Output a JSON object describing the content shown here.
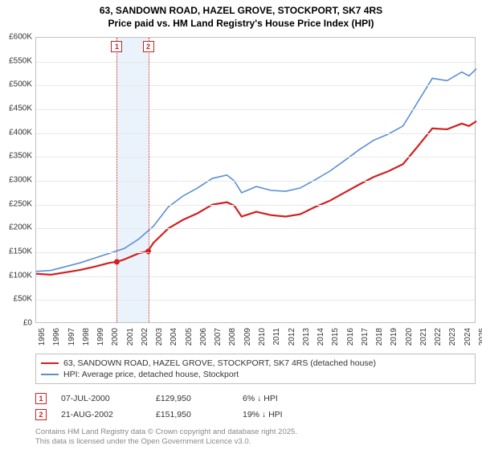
{
  "title": {
    "line1": "63, SANDOWN ROAD, HAZEL GROVE, STOCKPORT, SK7 4RS",
    "line2": "Price paid vs. HM Land Registry's House Price Index (HPI)"
  },
  "chart": {
    "type": "line",
    "background_color": "#ffffff",
    "grid_color": "#e8e8e8",
    "border_color": "#c0c0c0",
    "x_years": [
      1995,
      1996,
      1997,
      1998,
      1999,
      2000,
      2001,
      2002,
      2003,
      2004,
      2005,
      2006,
      2007,
      2008,
      2009,
      2010,
      2011,
      2012,
      2013,
      2014,
      2015,
      2016,
      2017,
      2018,
      2019,
      2020,
      2021,
      2022,
      2023,
      2024,
      2025
    ],
    "y_ticks": [
      0,
      50000,
      100000,
      150000,
      200000,
      250000,
      300000,
      350000,
      400000,
      450000,
      500000,
      550000,
      600000
    ],
    "y_tick_labels": [
      "£0",
      "£50K",
      "£100K",
      "£150K",
      "£200K",
      "£250K",
      "£300K",
      "£350K",
      "£400K",
      "£450K",
      "£500K",
      "£550K",
      "£600K"
    ],
    "ylim": [
      0,
      600000
    ],
    "xlim": [
      1995,
      2025
    ],
    "series": [
      {
        "name": "price_paid",
        "label": "63, SANDOWN ROAD, HAZEL GROVE, STOCKPORT, SK7 4RS (detached house)",
        "color": "#d02020",
        "line_width": 2.2,
        "data": [
          [
            1995,
            105000
          ],
          [
            1996,
            103000
          ],
          [
            1997,
            108000
          ],
          [
            1998,
            113000
          ],
          [
            1999,
            120000
          ],
          [
            2000,
            128000
          ],
          [
            2000.5,
            129950
          ],
          [
            2001,
            135000
          ],
          [
            2002,
            148000
          ],
          [
            2002.6,
            151950
          ],
          [
            2003,
            170000
          ],
          [
            2004,
            200000
          ],
          [
            2005,
            218000
          ],
          [
            2006,
            232000
          ],
          [
            2007,
            250000
          ],
          [
            2008,
            255000
          ],
          [
            2008.5,
            248000
          ],
          [
            2009,
            225000
          ],
          [
            2010,
            235000
          ],
          [
            2011,
            228000
          ],
          [
            2012,
            225000
          ],
          [
            2013,
            230000
          ],
          [
            2014,
            245000
          ],
          [
            2015,
            258000
          ],
          [
            2016,
            275000
          ],
          [
            2017,
            292000
          ],
          [
            2018,
            308000
          ],
          [
            2019,
            320000
          ],
          [
            2020,
            335000
          ],
          [
            2021,
            372000
          ],
          [
            2022,
            410000
          ],
          [
            2023,
            408000
          ],
          [
            2024,
            420000
          ],
          [
            2024.5,
            415000
          ],
          [
            2025,
            425000
          ]
        ]
      },
      {
        "name": "hpi",
        "label": "HPI: Average price, detached house, Stockport",
        "color": "#5a8fd6",
        "line_width": 1.6,
        "data": [
          [
            1995,
            110000
          ],
          [
            1996,
            112000
          ],
          [
            1997,
            120000
          ],
          [
            1998,
            128000
          ],
          [
            1999,
            138000
          ],
          [
            2000,
            148000
          ],
          [
            2001,
            158000
          ],
          [
            2002,
            178000
          ],
          [
            2003,
            205000
          ],
          [
            2004,
            245000
          ],
          [
            2005,
            268000
          ],
          [
            2006,
            285000
          ],
          [
            2007,
            305000
          ],
          [
            2008,
            312000
          ],
          [
            2008.5,
            300000
          ],
          [
            2009,
            275000
          ],
          [
            2010,
            288000
          ],
          [
            2011,
            280000
          ],
          [
            2012,
            278000
          ],
          [
            2013,
            285000
          ],
          [
            2014,
            302000
          ],
          [
            2015,
            320000
          ],
          [
            2016,
            342000
          ],
          [
            2017,
            365000
          ],
          [
            2018,
            385000
          ],
          [
            2019,
            398000
          ],
          [
            2020,
            415000
          ],
          [
            2021,
            465000
          ],
          [
            2022,
            515000
          ],
          [
            2023,
            510000
          ],
          [
            2024,
            528000
          ],
          [
            2024.5,
            520000
          ],
          [
            2025,
            535000
          ]
        ]
      }
    ],
    "sale_markers": [
      {
        "n": "1",
        "year": 2000.5,
        "price": 129950,
        "date": "07-JUL-2000",
        "delta": "6% ↓ HPI"
      },
      {
        "n": "2",
        "year": 2002.64,
        "price": 151950,
        "date": "21-AUG-2002",
        "delta": "19% ↓ HPI"
      }
    ],
    "marker_band": {
      "from": 2000.5,
      "to": 2002.64,
      "color": "#eaf2fb"
    },
    "label_fontsize": 10,
    "title_fontsize": 12
  },
  "legend": {
    "items": [
      {
        "color": "#d02020",
        "width": 2.5,
        "label_path": "chart.series.0.label"
      },
      {
        "color": "#5a8fd6",
        "width": 2,
        "label_path": "chart.series.1.label"
      }
    ]
  },
  "attribution": {
    "line1": "Contains HM Land Registry data © Crown copyright and database right 2025.",
    "line2": "This data is licensed under the Open Government Licence v3.0."
  }
}
